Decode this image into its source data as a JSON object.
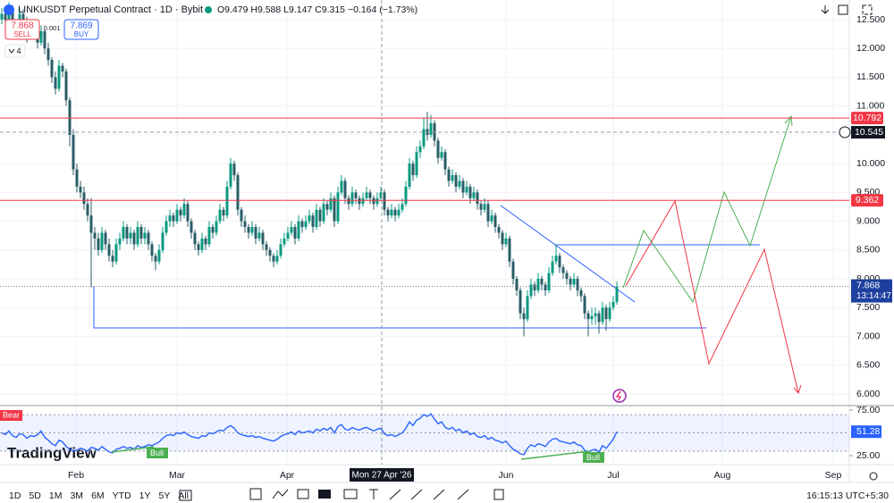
{
  "header": {
    "symbol": "LINKUSDT Perpetual Contract · 1D · Bybit",
    "ohlc": "O9.479 H9.588 L9.147 C9.315 −0.164 (−1.73%)",
    "sell_price": "7.868",
    "sell": "SELL",
    "spread": "0.001",
    "buy_price": "7.869",
    "buy": "BUY",
    "indicators": "4"
  },
  "chart_data": {
    "type": "candlestick",
    "up_color": "#089981",
    "down_color": "#2a5d67",
    "candles": [
      [
        12.5,
        12.7,
        12.42,
        12.6
      ],
      [
        12.6,
        12.72,
        12.4,
        12.5
      ],
      [
        12.5,
        12.8,
        12.45,
        12.7
      ],
      [
        12.7,
        12.75,
        12.3,
        12.4
      ],
      [
        12.4,
        12.5,
        12.2,
        12.3
      ],
      [
        12.3,
        12.7,
        12.25,
        12.6
      ],
      [
        12.6,
        12.68,
        12.4,
        12.5
      ],
      [
        12.5,
        12.55,
        12.1,
        12.2
      ],
      [
        12.2,
        12.5,
        12.15,
        12.4
      ],
      [
        12.4,
        12.45,
        12.2,
        12.3
      ],
      [
        12.3,
        12.35,
        12.0,
        12.1
      ],
      [
        12.1,
        12.4,
        12.05,
        12.3
      ],
      [
        12.3,
        12.32,
        11.9,
        12.0
      ],
      [
        12.0,
        12.1,
        11.7,
        11.8
      ],
      [
        11.8,
        11.85,
        11.4,
        11.5
      ],
      [
        11.5,
        11.6,
        11.2,
        11.3
      ],
      [
        11.3,
        11.8,
        11.25,
        11.7
      ],
      [
        11.7,
        11.75,
        11.5,
        11.6
      ],
      [
        11.6,
        11.65,
        11.0,
        11.1
      ],
      [
        11.1,
        11.15,
        10.3,
        10.5
      ],
      [
        10.5,
        10.6,
        9.8,
        9.9
      ],
      [
        9.9,
        10.0,
        9.5,
        9.6
      ],
      [
        9.6,
        9.7,
        9.4,
        9.5
      ],
      [
        9.5,
        9.6,
        9.2,
        9.3
      ],
      [
        9.3,
        9.4,
        9.0,
        9.1
      ],
      [
        9.1,
        9.4,
        7.85,
        8.8
      ],
      [
        8.8,
        8.9,
        8.5,
        8.7
      ],
      [
        8.7,
        8.8,
        8.4,
        8.5
      ],
      [
        8.5,
        8.9,
        8.45,
        8.8
      ],
      [
        8.8,
        8.85,
        8.5,
        8.6
      ],
      [
        8.6,
        8.7,
        8.3,
        8.4
      ],
      [
        8.4,
        8.5,
        8.2,
        8.3
      ],
      [
        8.3,
        8.7,
        8.25,
        8.6
      ],
      [
        8.6,
        8.8,
        8.5,
        8.7
      ],
      [
        8.7,
        9.0,
        8.65,
        8.9
      ],
      [
        8.9,
        8.95,
        8.6,
        8.7
      ],
      [
        8.7,
        8.9,
        8.6,
        8.8
      ],
      [
        8.8,
        8.85,
        8.5,
        8.6
      ],
      [
        8.6,
        9.0,
        8.55,
        8.9
      ],
      [
        8.9,
        8.95,
        8.6,
        8.7
      ],
      [
        8.7,
        8.9,
        8.6,
        8.8
      ],
      [
        8.8,
        8.85,
        8.5,
        8.6
      ],
      [
        8.6,
        8.65,
        8.3,
        8.4
      ],
      [
        8.4,
        8.45,
        8.15,
        8.3
      ],
      [
        8.3,
        8.6,
        8.25,
        8.5
      ],
      [
        8.5,
        8.9,
        8.45,
        8.8
      ],
      [
        8.8,
        9.1,
        8.75,
        9.0
      ],
      [
        9.0,
        9.2,
        8.9,
        9.1
      ],
      [
        9.1,
        9.15,
        8.9,
        9.0
      ],
      [
        9.0,
        9.3,
        8.95,
        9.2
      ],
      [
        9.2,
        9.25,
        9.0,
        9.1
      ],
      [
        9.1,
        9.4,
        9.05,
        9.3
      ],
      [
        9.3,
        9.35,
        8.9,
        9.0
      ],
      [
        9.0,
        9.05,
        8.7,
        8.8
      ],
      [
        8.8,
        8.85,
        8.5,
        8.6
      ],
      [
        8.6,
        8.65,
        8.4,
        8.5
      ],
      [
        8.5,
        8.8,
        8.45,
        8.7
      ],
      [
        8.7,
        8.75,
        8.5,
        8.6
      ],
      [
        8.6,
        9.0,
        8.55,
        8.9
      ],
      [
        8.9,
        8.95,
        8.7,
        8.8
      ],
      [
        8.8,
        9.1,
        8.75,
        9.0
      ],
      [
        9.0,
        9.3,
        8.95,
        9.2
      ],
      [
        9.2,
        9.25,
        9.0,
        9.1
      ],
      [
        9.1,
        9.7,
        9.05,
        9.6
      ],
      [
        9.6,
        10.1,
        9.55,
        10.0
      ],
      [
        10.0,
        10.05,
        9.7,
        9.8
      ],
      [
        9.8,
        9.85,
        9.1,
        9.2
      ],
      [
        9.2,
        9.25,
        8.9,
        9.0
      ],
      [
        9.0,
        9.1,
        8.8,
        8.9
      ],
      [
        8.9,
        8.95,
        8.7,
        8.8
      ],
      [
        8.8,
        9.0,
        8.75,
        8.9
      ],
      [
        8.9,
        8.95,
        8.6,
        8.7
      ],
      [
        8.7,
        8.9,
        8.65,
        8.8
      ],
      [
        8.8,
        8.85,
        8.5,
        8.6
      ],
      [
        8.6,
        8.65,
        8.4,
        8.5
      ],
      [
        8.5,
        8.55,
        8.3,
        8.4
      ],
      [
        8.4,
        8.45,
        8.2,
        8.3
      ],
      [
        8.3,
        8.5,
        8.25,
        8.4
      ],
      [
        8.4,
        8.7,
        8.35,
        8.6
      ],
      [
        8.6,
        8.8,
        8.55,
        8.7
      ],
      [
        8.7,
        8.9,
        8.65,
        8.8
      ],
      [
        8.8,
        9.0,
        8.75,
        8.9
      ],
      [
        8.9,
        8.95,
        8.6,
        8.7
      ],
      [
        8.7,
        9.1,
        8.65,
        9.0
      ],
      [
        9.0,
        9.05,
        8.8,
        8.9
      ],
      [
        8.9,
        9.1,
        8.85,
        9.0
      ],
      [
        9.0,
        9.2,
        8.95,
        9.1
      ],
      [
        9.1,
        9.15,
        8.8,
        8.9
      ],
      [
        8.9,
        9.3,
        8.85,
        9.2
      ],
      [
        9.2,
        9.25,
        8.9,
        9.0
      ],
      [
        9.0,
        9.4,
        8.95,
        9.3
      ],
      [
        9.3,
        9.35,
        9.1,
        9.2
      ],
      [
        9.2,
        9.5,
        9.15,
        9.4
      ],
      [
        9.4,
        9.45,
        8.9,
        9.0
      ],
      [
        9.0,
        9.6,
        8.95,
        9.5
      ],
      [
        9.5,
        9.8,
        9.45,
        9.7
      ],
      [
        9.7,
        9.75,
        9.3,
        9.4
      ],
      [
        9.4,
        9.45,
        9.2,
        9.3
      ],
      [
        9.3,
        9.6,
        9.25,
        9.5
      ],
      [
        9.5,
        9.55,
        9.3,
        9.4
      ],
      [
        9.4,
        9.45,
        9.2,
        9.3
      ],
      [
        9.3,
        9.5,
        9.25,
        9.4
      ],
      [
        9.4,
        9.6,
        9.35,
        9.5
      ],
      [
        9.5,
        9.55,
        9.3,
        9.4
      ],
      [
        9.4,
        9.45,
        9.2,
        9.3
      ],
      [
        9.3,
        9.5,
        9.25,
        9.4
      ],
      [
        9.4,
        9.6,
        9.35,
        9.5
      ],
      [
        9.5,
        9.55,
        9.1,
        9.2
      ],
      [
        9.2,
        9.25,
        9.0,
        9.1
      ],
      [
        9.1,
        9.3,
        9.05,
        9.2
      ],
      [
        9.2,
        9.25,
        9.0,
        9.1
      ],
      [
        9.1,
        9.3,
        9.05,
        9.2
      ],
      [
        9.2,
        9.4,
        9.15,
        9.3
      ],
      [
        9.3,
        9.7,
        9.25,
        9.6
      ],
      [
        9.6,
        10.1,
        9.55,
        10.0
      ],
      [
        10.0,
        10.05,
        9.7,
        9.8
      ],
      [
        9.8,
        10.3,
        9.75,
        10.2
      ],
      [
        10.2,
        10.4,
        10.1,
        10.3
      ],
      [
        10.3,
        10.8,
        10.25,
        10.6
      ],
      [
        10.6,
        10.9,
        10.4,
        10.5
      ],
      [
        10.5,
        10.85,
        10.45,
        10.7
      ],
      [
        10.7,
        10.75,
        10.3,
        10.4
      ],
      [
        10.4,
        10.45,
        10.0,
        10.1
      ],
      [
        10.1,
        10.3,
        10.05,
        10.2
      ],
      [
        10.2,
        10.25,
        9.8,
        9.9
      ],
      [
        9.9,
        9.95,
        9.6,
        9.7
      ],
      [
        9.7,
        9.9,
        9.65,
        9.8
      ],
      [
        9.8,
        9.85,
        9.5,
        9.6
      ],
      [
        9.6,
        9.8,
        9.55,
        9.7
      ],
      [
        9.7,
        9.75,
        9.4,
        9.5
      ],
      [
        9.5,
        9.7,
        9.45,
        9.6
      ],
      [
        9.6,
        9.65,
        9.3,
        9.4
      ],
      [
        9.4,
        9.6,
        9.35,
        9.5
      ],
      [
        9.5,
        9.55,
        9.2,
        9.3
      ],
      [
        9.3,
        9.35,
        9.1,
        9.2
      ],
      [
        9.2,
        9.4,
        9.15,
        9.3
      ],
      [
        9.3,
        9.35,
        8.9,
        9.0
      ],
      [
        9.0,
        9.2,
        8.95,
        9.1
      ],
      [
        9.1,
        9.15,
        8.8,
        8.9
      ],
      [
        8.9,
        8.95,
        8.7,
        8.8
      ],
      [
        8.8,
        8.85,
        8.5,
        8.6
      ],
      [
        8.6,
        8.8,
        8.55,
        8.7
      ],
      [
        8.7,
        8.75,
        8.2,
        8.3
      ],
      [
        8.3,
        8.35,
        7.9,
        8.0
      ],
      [
        8.0,
        8.05,
        7.7,
        7.8
      ],
      [
        7.8,
        7.85,
        7.3,
        7.4
      ],
      [
        7.4,
        7.5,
        7.0,
        7.3
      ],
      [
        7.3,
        7.8,
        7.25,
        7.7
      ],
      [
        7.7,
        8.0,
        7.65,
        7.9
      ],
      [
        7.9,
        7.95,
        7.7,
        7.8
      ],
      [
        7.8,
        8.1,
        7.75,
        8.0
      ],
      [
        8.0,
        8.05,
        7.8,
        7.9
      ],
      [
        7.9,
        7.95,
        7.7,
        7.8
      ],
      [
        7.8,
        8.2,
        7.75,
        8.1
      ],
      [
        8.1,
        8.4,
        8.05,
        8.3
      ],
      [
        8.3,
        8.6,
        8.25,
        8.4
      ],
      [
        8.4,
        8.45,
        8.1,
        8.2
      ],
      [
        8.2,
        8.25,
        8.0,
        8.1
      ],
      [
        8.1,
        8.15,
        7.9,
        8.0
      ],
      [
        8.0,
        8.05,
        7.8,
        7.9
      ],
      [
        7.9,
        8.1,
        7.85,
        8.0
      ],
      [
        8.0,
        8.05,
        7.7,
        7.8
      ],
      [
        7.8,
        7.85,
        7.6,
        7.7
      ],
      [
        7.7,
        7.75,
        7.3,
        7.4
      ],
      [
        7.4,
        7.45,
        7.0,
        7.3
      ],
      [
        7.3,
        7.5,
        7.2,
        7.35
      ],
      [
        7.35,
        7.5,
        7.2,
        7.4
      ],
      [
        7.4,
        7.45,
        7.05,
        7.25
      ],
      [
        7.25,
        7.6,
        7.2,
        7.5
      ],
      [
        7.5,
        7.55,
        7.1,
        7.3
      ],
      [
        7.3,
        7.6,
        7.25,
        7.5
      ],
      [
        7.5,
        7.7,
        7.45,
        7.6
      ],
      [
        7.6,
        7.95,
        7.55,
        7.868
      ]
    ],
    "xlim": [
      -0.5,
      237
    ],
    "xticks": [
      {
        "value": 20.75,
        "label": "Feb"
      },
      {
        "value": 49,
        "label": "Mar"
      },
      {
        "value": 79.75,
        "label": "Apr"
      },
      {
        "value": 141,
        "label": "Jun"
      },
      {
        "value": 171,
        "label": "Jul"
      },
      {
        "value": 201.5,
        "label": "Aug"
      },
      {
        "value": 232.5,
        "label": "Sep"
      }
    ],
    "ylim": [
      5.814,
      12.841
    ],
    "yticks": [
      {
        "value": 12.5,
        "label": "12.500"
      },
      {
        "value": 12,
        "label": "12.000"
      },
      {
        "value": 11.5,
        "label": "11.500"
      },
      {
        "value": 11,
        "label": "11.000"
      },
      {
        "value": 10.5,
        "label": "10.500"
      },
      {
        "value": 10,
        "label": "10.000"
      },
      {
        "value": 9.5,
        "label": "9.500"
      },
      {
        "value": 9,
        "label": "9.000"
      },
      {
        "value": 8.5,
        "label": "8.500"
      },
      {
        "value": 8,
        "label": "8.000"
      },
      {
        "value": 7.5,
        "label": "7.500"
      },
      {
        "value": 7,
        "label": "7.000"
      },
      {
        "value": 6.5,
        "label": "6.500"
      },
      {
        "value": 6,
        "label": "6.000"
      }
    ],
    "price_lines": [
      {
        "value": 10.792,
        "color": "#f23645"
      },
      {
        "value": 9.362,
        "color": "#f23645"
      }
    ],
    "last_price": {
      "value": 7.868,
      "countdown": "13:14:47",
      "color": "#1e3f9e"
    },
    "crosshair": {
      "x": 106.25,
      "x_label": "Mon 27 Apr '26",
      "price": 10.545
    },
    "rsi": {
      "values": [
        50,
        48,
        52,
        47,
        45,
        49,
        48,
        44,
        47,
        46,
        48,
        52,
        45,
        42,
        38,
        36,
        42,
        40,
        35,
        32,
        30,
        31,
        33,
        32,
        30,
        34,
        33,
        31,
        35,
        32,
        29,
        28,
        32,
        33,
        35,
        33,
        34,
        32,
        36,
        34,
        35,
        37,
        36,
        38,
        40,
        44,
        47,
        48,
        47,
        50,
        49,
        51,
        48,
        46,
        45,
        44,
        47,
        46,
        50,
        49,
        51,
        53,
        52,
        56,
        58,
        55,
        50,
        48,
        47,
        46,
        47,
        45,
        46,
        44,
        43,
        42,
        41,
        43,
        46,
        48,
        49,
        51,
        48,
        52,
        50,
        51,
        52,
        50,
        54,
        52,
        55,
        53,
        56,
        50,
        57,
        59,
        54,
        53,
        56,
        54,
        53,
        55,
        56,
        54,
        52,
        54,
        55,
        49,
        47,
        48,
        46,
        48,
        50,
        55,
        62,
        58,
        64,
        66,
        70,
        68,
        71,
        65,
        60,
        62,
        56,
        54,
        56,
        52,
        54,
        50,
        52,
        48,
        50,
        46,
        45,
        47,
        43,
        45,
        42,
        41,
        39,
        41,
        36,
        32,
        30,
        27,
        26,
        33,
        37,
        35,
        38,
        37,
        35,
        40,
        43,
        44,
        41,
        40,
        39,
        38,
        40,
        37,
        36,
        31,
        29,
        31,
        32,
        29,
        36,
        33,
        38,
        43,
        51.28
      ],
      "color": "#2962ff",
      "ylim": [
        15.2,
        78.9
      ],
      "yticks": [
        {
          "value": 75,
          "label": "75.00"
        },
        {
          "value": 25,
          "label": "25.00"
        }
      ],
      "band": [
        30,
        70
      ],
      "levels": [
        70,
        50,
        30
      ],
      "bear": "Bear",
      "bull": [
        "Bull",
        "Bull"
      ]
    }
  },
  "watermark": "TradingView",
  "toolbar": {
    "ranges": [
      "1D",
      "5D",
      "1M",
      "3M",
      "6M",
      "YTD",
      "1Y",
      "5Y",
      "All"
    ],
    "clock": "16:15:13 UTC+5:30"
  }
}
